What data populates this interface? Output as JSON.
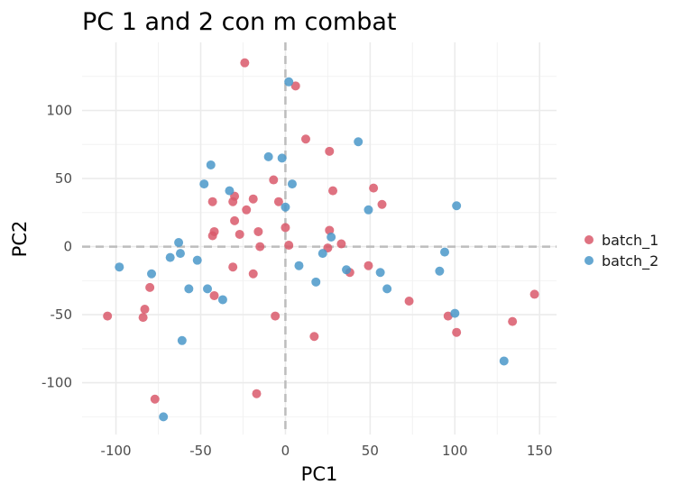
{
  "chart_data": {
    "type": "scatter",
    "title": "PC 1 and 2 con m combat",
    "xlabel": "PC1",
    "ylabel": "PC2",
    "xlim": [
      -120,
      160
    ],
    "ylim": [
      -138,
      150
    ],
    "x_ticks": [
      -100,
      -50,
      0,
      50,
      100,
      150
    ],
    "y_ticks": [
      -100,
      -50,
      0,
      50,
      100
    ],
    "x_tick_labels": [
      "-100",
      "-50",
      "0",
      "50",
      "100",
      "150"
    ],
    "y_tick_labels": [
      "-100",
      "-50",
      "0",
      "50",
      "100"
    ],
    "grid": true,
    "reference_lines": {
      "x": 0,
      "y": 0,
      "style": "dashed"
    },
    "legend_position": "right",
    "series": [
      {
        "name": "batch_1",
        "color": "#d9596b",
        "points": [
          [
            -24,
            135
          ],
          [
            6,
            118
          ],
          [
            12,
            79
          ],
          [
            26,
            70
          ],
          [
            -7,
            49
          ],
          [
            52,
            43
          ],
          [
            28,
            41
          ],
          [
            -30,
            37
          ],
          [
            -19,
            35
          ],
          [
            -43,
            33
          ],
          [
            -4,
            33
          ],
          [
            -31,
            33
          ],
          [
            57,
            31
          ],
          [
            -23,
            27
          ],
          [
            -30,
            19
          ],
          [
            0,
            14
          ],
          [
            26,
            12
          ],
          [
            -42,
            11
          ],
          [
            -16,
            11
          ],
          [
            -27,
            9
          ],
          [
            -43,
            8
          ],
          [
            33,
            2
          ],
          [
            2,
            1
          ],
          [
            -15,
            0
          ],
          [
            25,
            -1
          ],
          [
            49,
            -14
          ],
          [
            -31,
            -15
          ],
          [
            38,
            -19
          ],
          [
            -19,
            -20
          ],
          [
            -80,
            -30
          ],
          [
            -42,
            -36
          ],
          [
            73,
            -40
          ],
          [
            -83,
            -46
          ],
          [
            -105,
            -51
          ],
          [
            -84,
            -52
          ],
          [
            -6,
            -51
          ],
          [
            96,
            -51
          ],
          [
            134,
            -55
          ],
          [
            147,
            -35
          ],
          [
            101,
            -63
          ],
          [
            17,
            -66
          ],
          [
            -17,
            -108
          ],
          [
            -77,
            -112
          ]
        ]
      },
      {
        "name": "batch_2",
        "color": "#4a98c9",
        "points": [
          [
            2,
            121
          ],
          [
            43,
            77
          ],
          [
            -10,
            66
          ],
          [
            -2,
            65
          ],
          [
            -44,
            60
          ],
          [
            -48,
            46
          ],
          [
            4,
            46
          ],
          [
            -33,
            41
          ],
          [
            0,
            29
          ],
          [
            49,
            27
          ],
          [
            101,
            30
          ],
          [
            27,
            7
          ],
          [
            -63,
            3
          ],
          [
            -62,
            -5
          ],
          [
            94,
            -4
          ],
          [
            -68,
            -8
          ],
          [
            -52,
            -10
          ],
          [
            22,
            -5
          ],
          [
            8,
            -14
          ],
          [
            -98,
            -15
          ],
          [
            36,
            -17
          ],
          [
            56,
            -19
          ],
          [
            91,
            -18
          ],
          [
            -79,
            -20
          ],
          [
            18,
            -26
          ],
          [
            -57,
            -31
          ],
          [
            -46,
            -31
          ],
          [
            60,
            -31
          ],
          [
            -37,
            -39
          ],
          [
            100,
            -49
          ],
          [
            -61,
            -69
          ],
          [
            129,
            -84
          ],
          [
            -72,
            -125
          ]
        ]
      }
    ]
  }
}
